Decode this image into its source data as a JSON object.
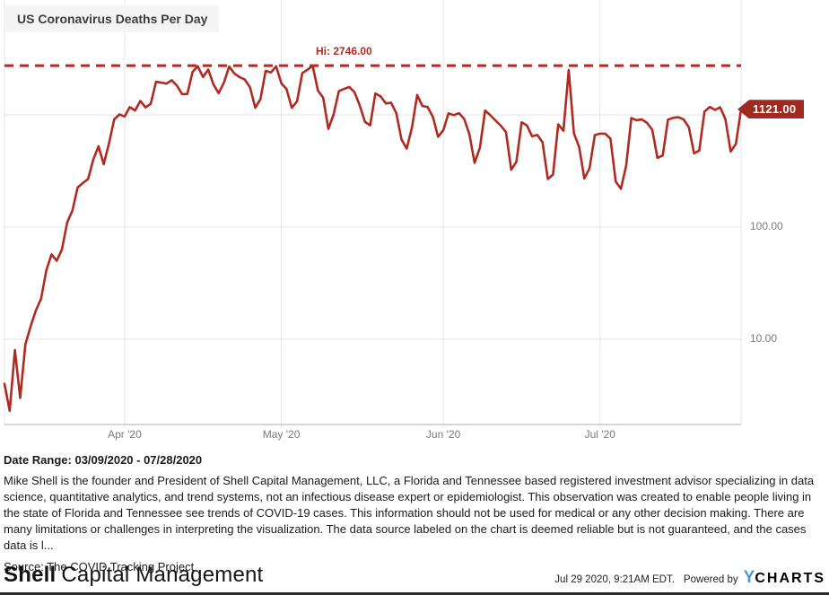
{
  "chart": {
    "title": "US Coronavirus Deaths Per Day",
    "hi_label": "Hi: 2746.00",
    "last_label": "1121.00",
    "colors": {
      "line": "#af2b21",
      "dashed_hi": "#b02b21",
      "badge_bg": "#9f2a22",
      "grid": "#e4e4e4",
      "axis": "#c8c8c8",
      "tick_text": "#7a7a7a"
    }
  },
  "chart_data": {
    "type": "line",
    "title": "US Coronavirus Deaths Per Day",
    "series_name": "US Coronavirus Deaths Per Day",
    "y_scale": "log",
    "grid": true,
    "legend": "none",
    "start_date": "2020-03-09",
    "end_date": "2020-07-28",
    "high_value": 2746,
    "last_value": 1121,
    "x_ticks": [
      {
        "label": "Apr '20",
        "date": "2020-04-01"
      },
      {
        "label": "May '20",
        "date": "2020-05-01"
      },
      {
        "label": "Jun '20",
        "date": "2020-06-01"
      },
      {
        "label": "Jul '20",
        "date": "2020-07-01"
      }
    ],
    "y_ticks": [
      {
        "label": "100.00",
        "value": 100
      },
      {
        "label": "10.00",
        "value": 10
      }
    ],
    "gridline_values": [
      1000,
      100,
      10
    ],
    "values": [
      4,
      2.3,
      8,
      3,
      9,
      13,
      18,
      23,
      41,
      57,
      50,
      63,
      110,
      140,
      225,
      247,
      268,
      400,
      525,
      363,
      558,
      912,
      1010,
      968,
      1174,
      1094,
      1331,
      1165,
      1255,
      1970,
      1940,
      1900,
      2035,
      1830,
      1528,
      1535,
      2408,
      2712,
      2174,
      2535,
      1867,
      1561,
      1939,
      2693,
      2341,
      2172,
      2065,
      1756,
      1156,
      1384,
      2470,
      2390,
      2710,
      1909,
      1697,
      1154,
      1324,
      2350,
      2528,
      2746,
      1645,
      1422,
      750,
      1008,
      1630,
      1703,
      1774,
      1595,
      1218,
      865,
      808,
      1552,
      1461,
      1263,
      1284,
      1036,
      605,
      500,
      774,
      1505,
      1199,
      1175,
      960,
      638,
      730,
      1031,
      995,
      1036,
      921,
      670,
      373,
      510,
      1093,
      993,
      891,
      802,
      701,
      324,
      382,
      858,
      804,
      644,
      662,
      570,
      268,
      294,
      824,
      722,
      2516,
      684,
      517,
      271,
      335,
      661,
      680,
      679,
      614,
      254,
      219,
      352,
      936,
      897,
      911,
      849,
      737,
      414,
      435,
      907,
      941,
      954,
      908,
      775,
      454,
      480,
      1069,
      1175,
      1109,
      1168,
      917,
      471,
      551,
      1121
    ]
  },
  "below": {
    "date_range": "Date Range: 03/09/2020 - 07/28/2020",
    "disclaimer": "Mike Shell is the founder and President of Shell Capital Management, LLC, a Florida and Tennessee based registered investment advisor specializing in data science, quantitative analytics, and trend systems, not an infectious disease expert or epidemiologist. This observation was created to enable people living in the state of Florida and Tennessee see trends of COVID-19 cases. This information should not be used for medical or any other decision making. There are many limitations or challenges in interpreting the visualization. The data source labeled on the chart is deemed reliable but is not guaranteed, and the cases data is l...",
    "source": "Source: The COVID Tracking Project"
  },
  "footer": {
    "brand_bold": "Shell",
    "brand_rest": "Capital Management",
    "timestamp": "Jul 29 2020, 9:21AM EDT.",
    "powered_by": "Powered by",
    "ycharts_y": "Y",
    "ycharts_rest": "CHARTS"
  }
}
